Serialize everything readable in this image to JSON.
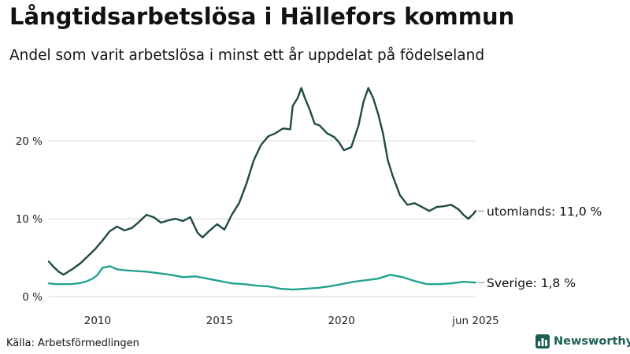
{
  "title": "Långtidsarbetslösa i Hällefors kommun",
  "subtitle": "Andel som varit arbetslösa i minst ett år uppdelat på födelseland",
  "source": "Källa: Arbetsförmedlingen",
  "brand": "Newsworthy",
  "colors": {
    "utomlands": "#1f4a45",
    "sverige": "#23a293",
    "grid": "#d9d9d9",
    "brand": "#1d5e57"
  },
  "icons": {
    "logo": "bar-chart-icon"
  },
  "chart_data": {
    "type": "line",
    "title": "Långtidsarbetslösa i Hällefors kommun",
    "subtitle": "Andel som varit arbetslösa i minst ett år uppdelat på födelseland",
    "xlim": [
      2008,
      2025.5
    ],
    "ylim": [
      0,
      28
    ],
    "y_ticks": [
      0,
      10,
      20
    ],
    "y_tick_labels": [
      "0 %",
      "10 %",
      "20 %"
    ],
    "x_ticks": [
      2010,
      2015,
      2020,
      2025.5
    ],
    "x_tick_labels": [
      "2010",
      "2015",
      "2020",
      "jun 2025"
    ],
    "grid": true,
    "series": [
      {
        "key": "utomlands",
        "name": "utomlands",
        "end_label": "utomlands: 11,0 %",
        "x": [
          2008.0,
          2008.2,
          2008.4,
          2008.6,
          2008.8,
          2009.0,
          2009.3,
          2009.6,
          2009.9,
          2010.2,
          2010.5,
          2010.8,
          2011.1,
          2011.4,
          2011.7,
          2012.0,
          2012.3,
          2012.6,
          2012.9,
          2013.2,
          2013.5,
          2013.8,
          2014.1,
          2014.3,
          2014.6,
          2014.9,
          2015.2,
          2015.5,
          2015.8,
          2016.1,
          2016.4,
          2016.7,
          2017.0,
          2017.3,
          2017.6,
          2017.9,
          2018.0,
          2018.2,
          2018.35,
          2018.5,
          2018.7,
          2018.9,
          2019.1,
          2019.4,
          2019.7,
          2019.9,
          2020.1,
          2020.4,
          2020.7,
          2020.9,
          2021.1,
          2021.3,
          2021.5,
          2021.7,
          2021.9,
          2022.1,
          2022.4,
          2022.7,
          2023.0,
          2023.3,
          2023.6,
          2023.9,
          2024.2,
          2024.5,
          2024.8,
          2025.0,
          2025.2,
          2025.4,
          2025.5
        ],
        "values": [
          4.5,
          3.8,
          3.2,
          2.8,
          3.2,
          3.6,
          4.3,
          5.2,
          6.1,
          7.2,
          8.4,
          9.0,
          8.5,
          8.8,
          9.6,
          10.5,
          10.2,
          9.5,
          9.8,
          10.0,
          9.7,
          10.2,
          8.2,
          7.6,
          8.5,
          9.3,
          8.6,
          10.5,
          12.0,
          14.5,
          17.5,
          19.5,
          20.6,
          21.0,
          21.6,
          21.5,
          24.5,
          25.5,
          26.8,
          25.5,
          24.0,
          22.2,
          22.0,
          21.0,
          20.5,
          19.8,
          18.8,
          19.2,
          22.0,
          25.0,
          26.8,
          25.5,
          23.5,
          21.0,
          17.5,
          15.5,
          13.0,
          11.8,
          12.0,
          11.5,
          11.0,
          11.5,
          11.6,
          11.8,
          11.2,
          10.5,
          10.0,
          10.6,
          11.0
        ]
      },
      {
        "key": "sverige",
        "name": "Sverige",
        "end_label": "Sverige:  1,8 %",
        "x": [
          2008.0,
          2008.3,
          2008.6,
          2008.9,
          2009.2,
          2009.5,
          2009.8,
          2010.0,
          2010.2,
          2010.5,
          2010.8,
          2011.1,
          2011.5,
          2012.0,
          2012.5,
          2013.0,
          2013.5,
          2014.0,
          2014.5,
          2015.0,
          2015.5,
          2016.0,
          2016.5,
          2017.0,
          2017.5,
          2018.0,
          2018.5,
          2019.0,
          2019.5,
          2020.0,
          2020.5,
          2021.0,
          2021.5,
          2022.0,
          2022.5,
          2023.0,
          2023.5,
          2024.0,
          2024.5,
          2025.0,
          2025.5
        ],
        "values": [
          1.7,
          1.6,
          1.6,
          1.6,
          1.7,
          1.9,
          2.3,
          2.8,
          3.7,
          3.9,
          3.5,
          3.4,
          3.3,
          3.2,
          3.0,
          2.8,
          2.5,
          2.6,
          2.3,
          2.0,
          1.7,
          1.6,
          1.4,
          1.3,
          1.0,
          0.9,
          1.0,
          1.1,
          1.3,
          1.6,
          1.9,
          2.1,
          2.3,
          2.8,
          2.5,
          2.0,
          1.6,
          1.6,
          1.7,
          1.9,
          1.8
        ]
      }
    ]
  }
}
